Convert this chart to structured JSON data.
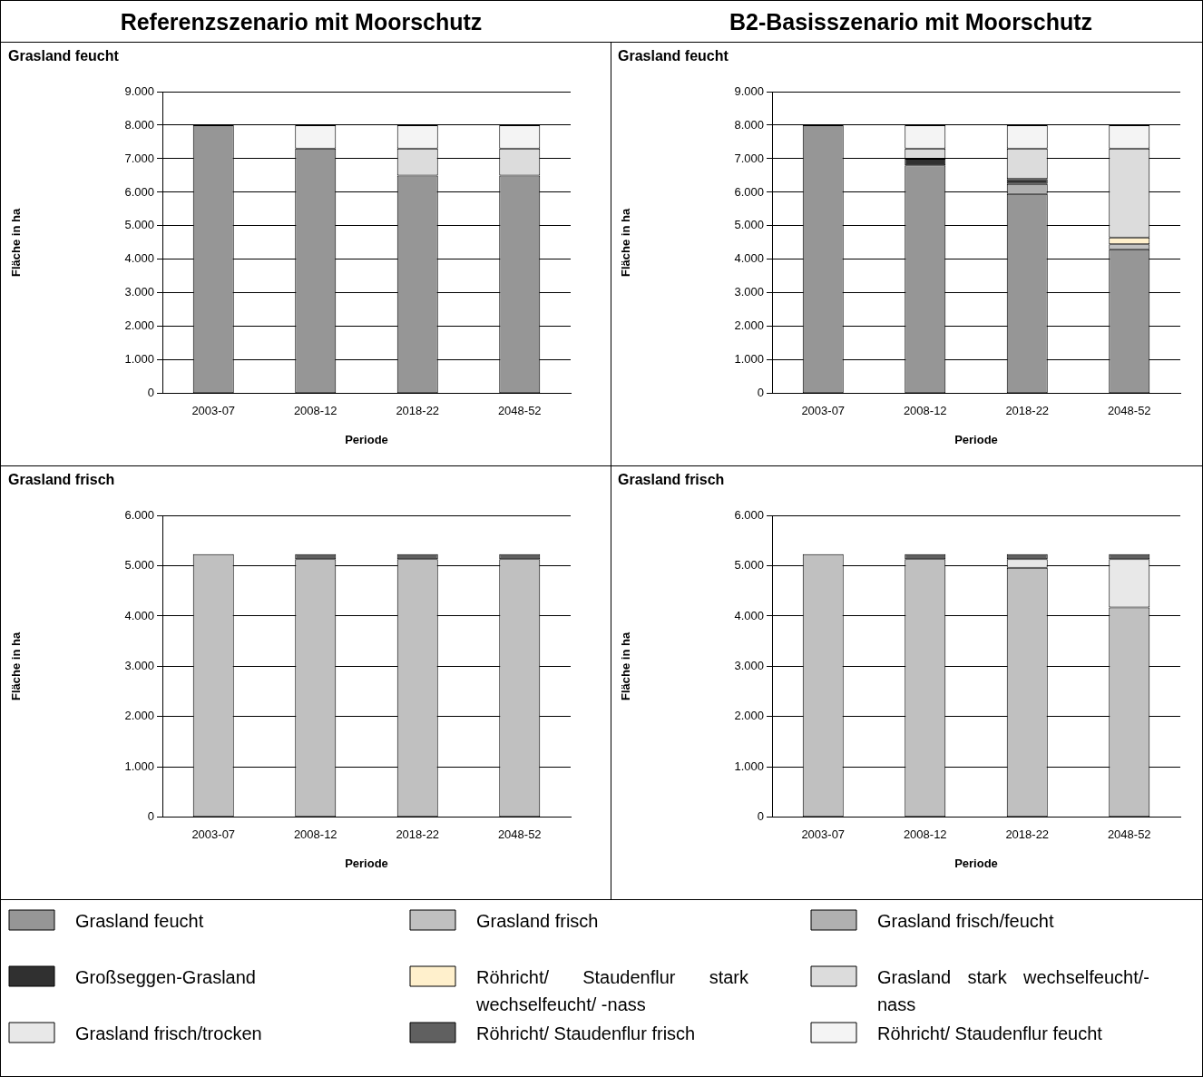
{
  "chart_data": [
    {
      "type": "bar",
      "title": "Referenzszenario mit Moorschutz",
      "subtitle": "Grasland feucht",
      "xlabel": "Periode",
      "ylabel": "Fläche in ha",
      "stacked": true,
      "grid": "y",
      "categories": [
        "2003-07",
        "2008-12",
        "2018-22",
        "2048-52"
      ],
      "ylim": [
        0,
        9000
      ],
      "yticks": [
        {
          "value": 0,
          "label": "0"
        },
        {
          "value": 1000,
          "label": "1.000"
        },
        {
          "value": 2000,
          "label": "2.000"
        },
        {
          "value": 3000,
          "label": "3.000"
        },
        {
          "value": 4000,
          "label": "4.000"
        },
        {
          "value": 5000,
          "label": "5.000"
        },
        {
          "value": 6000,
          "label": "6.000"
        },
        {
          "value": 7000,
          "label": "7.000"
        },
        {
          "value": 8000,
          "label": "8.000"
        },
        {
          "value": 9000,
          "label": "9.000"
        }
      ],
      "series": [
        {
          "color": "#969696",
          "values": [
            8000,
            7300,
            6500,
            6500
          ]
        },
        {
          "color": "#c0c0c0",
          "values": [
            0,
            0,
            0,
            0
          ]
        },
        {
          "color": "#b0b0b0",
          "values": [
            0,
            0,
            0,
            0
          ]
        },
        {
          "color": "#303030",
          "values": [
            0,
            0,
            0,
            0
          ]
        },
        {
          "color": "#fff0cc",
          "values": [
            0,
            0,
            0,
            0
          ]
        },
        {
          "color": "#dcdcdc",
          "values": [
            0,
            0,
            800,
            800
          ]
        },
        {
          "color": "#e8e8e8",
          "values": [
            0,
            0,
            0,
            0
          ]
        },
        {
          "color": "#606060",
          "values": [
            0,
            0,
            0,
            0
          ]
        },
        {
          "color": "#f4f4f4",
          "values": [
            0,
            700,
            700,
            700
          ]
        }
      ]
    },
    {
      "type": "bar",
      "title": "B2-Basisszenario mit Moorschutz",
      "subtitle": "Grasland feucht",
      "xlabel": "Periode",
      "ylabel": "Fläche in ha",
      "stacked": true,
      "grid": "y",
      "categories": [
        "2003-07",
        "2008-12",
        "2018-22",
        "2048-52"
      ],
      "ylim": [
        0,
        9000
      ],
      "yticks": [
        {
          "value": 0,
          "label": "0"
        },
        {
          "value": 1000,
          "label": "1.000"
        },
        {
          "value": 2000,
          "label": "2.000"
        },
        {
          "value": 3000,
          "label": "3.000"
        },
        {
          "value": 4000,
          "label": "4.000"
        },
        {
          "value": 5000,
          "label": "5.000"
        },
        {
          "value": 6000,
          "label": "6.000"
        },
        {
          "value": 7000,
          "label": "7.000"
        },
        {
          "value": 8000,
          "label": "8.000"
        },
        {
          "value": 9000,
          "label": "9.000"
        }
      ],
      "series": [
        {
          "color": "#969696",
          "values": [
            8000,
            6800,
            5950,
            4300
          ]
        },
        {
          "color": "#c0c0c0",
          "values": [
            0,
            0,
            0,
            150
          ]
        },
        {
          "color": "#b0b0b0",
          "values": [
            0,
            0,
            300,
            0
          ]
        },
        {
          "color": "#303030",
          "values": [
            0,
            200,
            150,
            0
          ]
        },
        {
          "color": "#fff0cc",
          "values": [
            0,
            0,
            0,
            200
          ]
        },
        {
          "color": "#dcdcdc",
          "values": [
            0,
            300,
            900,
            2650
          ]
        },
        {
          "color": "#e8e8e8",
          "values": [
            0,
            0,
            0,
            0
          ]
        },
        {
          "color": "#606060",
          "values": [
            0,
            0,
            0,
            0
          ]
        },
        {
          "color": "#f4f4f4",
          "values": [
            0,
            700,
            700,
            700
          ]
        }
      ]
    },
    {
      "type": "bar",
      "subtitle": "Grasland frisch",
      "xlabel": "Periode",
      "ylabel": "Fläche in ha",
      "stacked": true,
      "grid": "y",
      "categories": [
        "2003-07",
        "2008-12",
        "2018-22",
        "2048-52"
      ],
      "ylim": [
        0,
        6000
      ],
      "yticks": [
        {
          "value": 0,
          "label": "0"
        },
        {
          "value": 1000,
          "label": "1.000"
        },
        {
          "value": 2000,
          "label": "2.000"
        },
        {
          "value": 3000,
          "label": "3.000"
        },
        {
          "value": 4000,
          "label": "4.000"
        },
        {
          "value": 5000,
          "label": "5.000"
        },
        {
          "value": 6000,
          "label": "6.000"
        }
      ],
      "series": [
        {
          "color": "#969696",
          "values": [
            0,
            0,
            0,
            0
          ]
        },
        {
          "color": "#c0c0c0",
          "values": [
            5230,
            5130,
            5130,
            5130
          ]
        },
        {
          "color": "#b0b0b0",
          "values": [
            0,
            0,
            0,
            0
          ]
        },
        {
          "color": "#303030",
          "values": [
            0,
            0,
            0,
            0
          ]
        },
        {
          "color": "#fff0cc",
          "values": [
            0,
            0,
            0,
            0
          ]
        },
        {
          "color": "#dcdcdc",
          "values": [
            0,
            0,
            0,
            0
          ]
        },
        {
          "color": "#e8e8e8",
          "values": [
            0,
            0,
            0,
            0
          ]
        },
        {
          "color": "#606060",
          "values": [
            0,
            100,
            100,
            100
          ]
        },
        {
          "color": "#f4f4f4",
          "values": [
            0,
            0,
            0,
            0
          ]
        }
      ]
    },
    {
      "type": "bar",
      "subtitle": "Grasland frisch",
      "xlabel": "Periode",
      "ylabel": "Fläche in ha",
      "stacked": true,
      "grid": "y",
      "legend": "bottom",
      "categories": [
        "2003-07",
        "2008-12",
        "2018-22",
        "2048-52"
      ],
      "ylim": [
        0,
        6000
      ],
      "yticks": [
        {
          "value": 0,
          "label": "0"
        },
        {
          "value": 1000,
          "label": "1.000"
        },
        {
          "value": 2000,
          "label": "2.000"
        },
        {
          "value": 3000,
          "label": "3.000"
        },
        {
          "value": 4000,
          "label": "4.000"
        },
        {
          "value": 5000,
          "label": "5.000"
        },
        {
          "value": 6000,
          "label": "6.000"
        }
      ],
      "series": [
        {
          "name": "Grasland feucht",
          "color": "#969696",
          "values": [
            0,
            0,
            0,
            0
          ]
        },
        {
          "name": "Grasland frisch",
          "color": "#c0c0c0",
          "values": [
            5230,
            5130,
            4960,
            4170
          ]
        },
        {
          "name": "Grasland frisch/feucht",
          "color": "#b0b0b0",
          "values": [
            0,
            0,
            0,
            0
          ]
        },
        {
          "name": "Großseggen-Grasland",
          "color": "#303030",
          "values": [
            0,
            0,
            0,
            0
          ]
        },
        {
          "name": "Röhricht/ Staudenflur stark wechselfeucht/ -nass",
          "color": "#fff0cc",
          "values": [
            0,
            0,
            0,
            0
          ]
        },
        {
          "name": "Grasland stark wechselfeucht/-nass",
          "color": "#dcdcdc",
          "values": [
            0,
            0,
            0,
            0
          ]
        },
        {
          "name": "Grasland frisch/trocken",
          "color": "#e8e8e8",
          "values": [
            0,
            0,
            170,
            960
          ]
        },
        {
          "name": "Röhricht/ Staudenflur frisch",
          "color": "#606060",
          "values": [
            0,
            100,
            100,
            100
          ]
        },
        {
          "name": "Röhricht/ Staudenflur feucht",
          "color": "#f4f4f4",
          "values": [
            0,
            0,
            0,
            0
          ]
        }
      ]
    }
  ]
}
